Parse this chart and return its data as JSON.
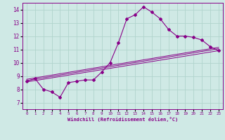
{
  "title": "",
  "xlabel": "Windchill (Refroidissement éolien,°C)",
  "ylabel": "",
  "background_color": "#cfe9e5",
  "grid_color": "#b0d4cc",
  "line_color": "#880088",
  "xlim": [
    -0.5,
    23.5
  ],
  "ylim": [
    6.5,
    14.5
  ],
  "xticks": [
    0,
    1,
    2,
    3,
    4,
    5,
    6,
    7,
    8,
    9,
    10,
    11,
    12,
    13,
    14,
    15,
    16,
    17,
    18,
    19,
    20,
    21,
    22,
    23
  ],
  "yticks": [
    7,
    8,
    9,
    10,
    11,
    12,
    13,
    14
  ],
  "main_x": [
    0,
    1,
    2,
    3,
    4,
    5,
    6,
    7,
    8,
    9,
    10,
    11,
    12,
    13,
    14,
    15,
    16,
    17,
    18,
    19,
    20,
    21,
    22,
    23
  ],
  "main_y": [
    8.6,
    8.8,
    8.0,
    7.8,
    7.4,
    8.5,
    8.6,
    8.7,
    8.7,
    9.3,
    10.0,
    11.5,
    13.3,
    13.6,
    14.2,
    13.8,
    13.3,
    12.5,
    12.0,
    12.0,
    11.9,
    11.7,
    11.2,
    10.9
  ],
  "reg_line1_x": [
    0,
    23
  ],
  "reg_line1_y": [
    8.55,
    10.9
  ],
  "reg_line2_x": [
    0,
    23
  ],
  "reg_line2_y": [
    8.65,
    11.05
  ],
  "reg_line3_x": [
    0,
    23
  ],
  "reg_line3_y": [
    8.75,
    11.15
  ]
}
